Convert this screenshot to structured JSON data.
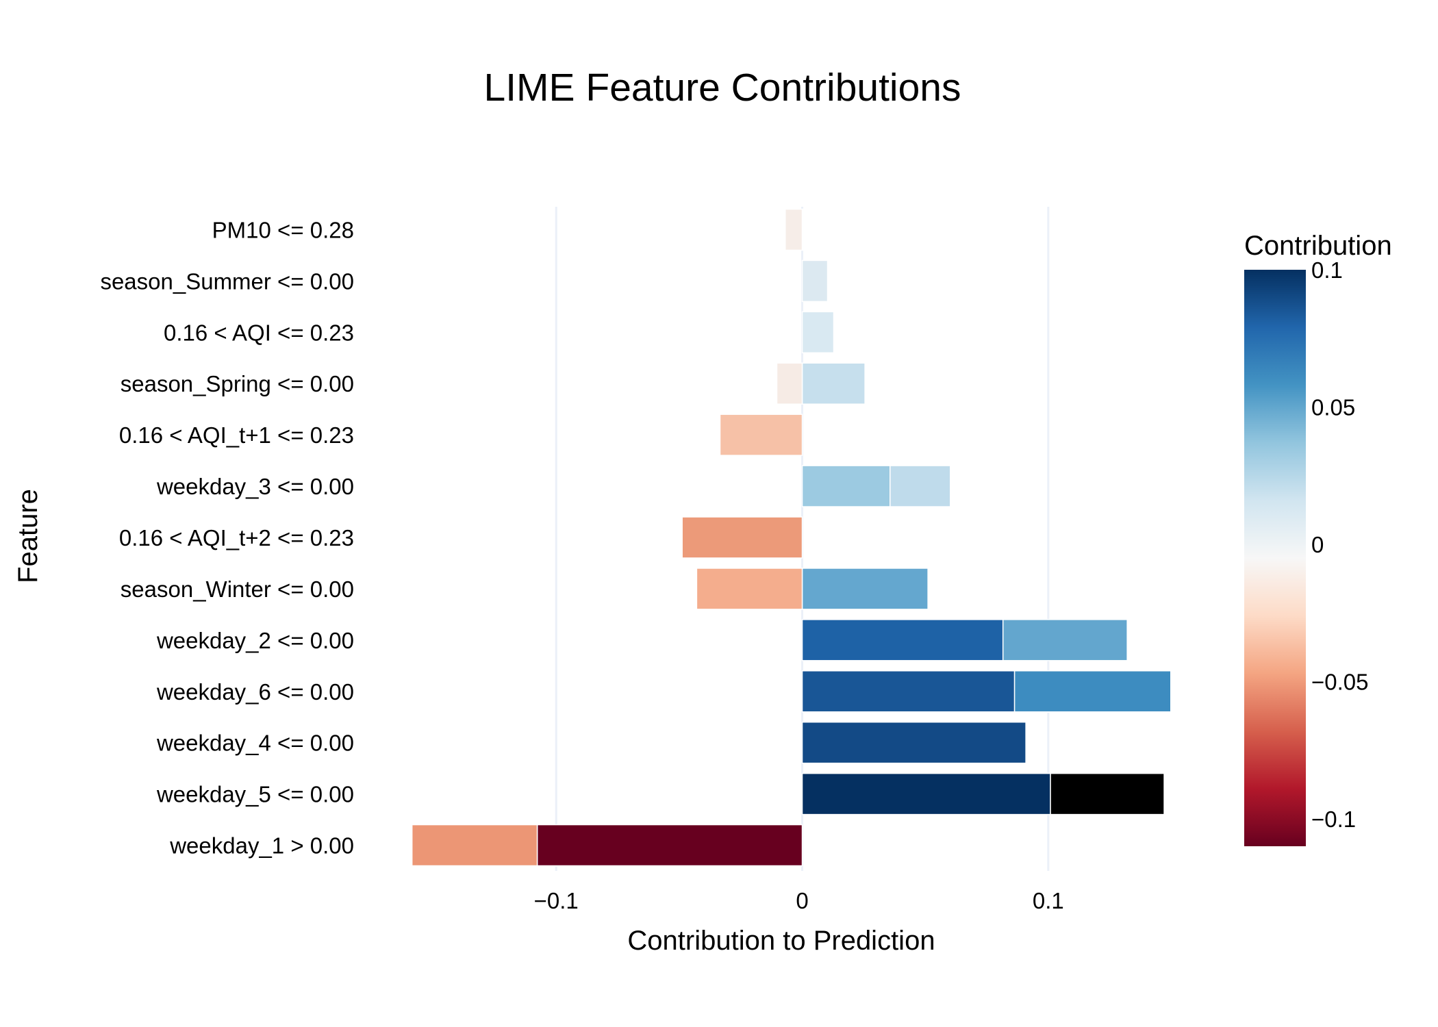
{
  "chart_data": {
    "type": "bar",
    "orientation": "horizontal",
    "stacked": true,
    "title": "LIME Feature Contributions",
    "xlabel": "Contribution to Prediction",
    "ylabel": "Feature",
    "xlim": [
      -0.1638,
      0.161
    ],
    "x_ticks": [
      {
        "value": -0.1,
        "label": "−0.1"
      },
      {
        "value": 0,
        "label": "0"
      },
      {
        "value": 0.1,
        "label": "0.1"
      }
    ],
    "grid": true,
    "legend_position": "right",
    "colorbar": {
      "title": "Contribution",
      "range": [
        -0.11,
        0.1
      ],
      "colorscale": "RdBu",
      "colors": [
        "#67001f",
        "#b2182b",
        "#d6604d",
        "#f4a582",
        "#fddbc7",
        "#f7f7f7",
        "#d1e5f0",
        "#92c5de",
        "#4393c3",
        "#2166ac",
        "#053061"
      ],
      "ticks": [
        {
          "value": 0.1,
          "label": "0.1"
        },
        {
          "value": 0.05,
          "label": "0.05"
        },
        {
          "value": 0,
          "label": "0"
        },
        {
          "value": -0.05,
          "label": "−0.05"
        },
        {
          "value": -0.1,
          "label": "−0.1"
        }
      ]
    },
    "categories": [
      "weekday_1 > 0.00",
      "weekday_5 <= 0.00",
      "weekday_4 <= 0.00",
      "weekday_6 <= 0.00",
      "weekday_2 <= 0.00",
      "season_Winter <= 0.00",
      "0.16 < AQI_t+2 <= 0.23",
      "weekday_3 <= 0.00",
      "0.16 < AQI_t+1 <= 0.23",
      "season_Spring <= 0.00",
      "0.16 < AQI <= 0.23",
      "season_Summer <= 0.00",
      "PM10 <= 0.28"
    ],
    "series": [
      {
        "values": [
          -0.1077,
          0.1009,
          0.0909,
          0.0863,
          0.0816,
          0.0511,
          -0.0488,
          0.0357,
          -0.0334,
          0.0255,
          0.0128,
          0.0103,
          0.0002
        ],
        "colors": [
          "#67001f",
          "#053061",
          "#134a86",
          "#195696",
          "#1e62a6",
          "#64a7cf",
          "#ec9a79",
          "#9ccae1",
          "#f6c1a7",
          "#c6dfed",
          "#d9e9f2",
          "#dce9f1",
          "#f6f6f7"
        ]
      },
      {
        "values": [
          -0.0509,
          0.0462,
          0.0,
          0.0635,
          0.0505,
          -0.0429,
          0.0,
          0.0245,
          0.0,
          -0.0103,
          0.0,
          0.0,
          -0.0069
        ],
        "colors": [
          "#ec9675",
          "#000000",
          "#000000",
          "#3d8cc0",
          "#63a6ce",
          "#f4ad8d",
          "#000000",
          "#bfdbeb",
          "#000000",
          "#f6ebe5",
          "#000000",
          "#000000",
          "#f6ede8"
        ]
      }
    ]
  }
}
